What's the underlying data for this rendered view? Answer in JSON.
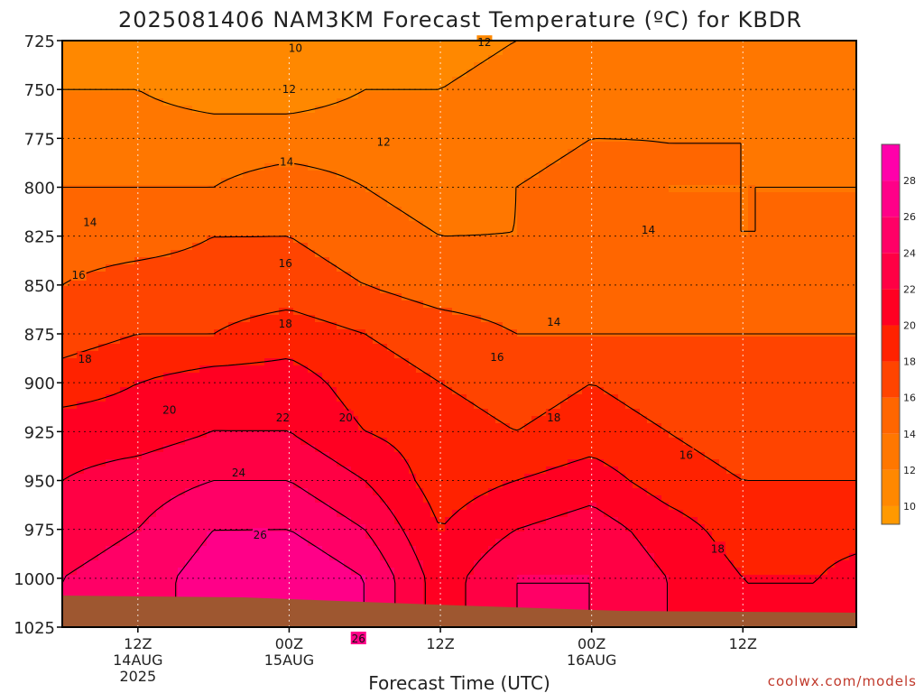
{
  "chart_data": {
    "type": "heatmap",
    "title": "2025081406 NAM3KM Forecast Temperature (ºC) for KBDR",
    "xlabel": "Forecast Time (UTC)",
    "ylabel": "",
    "credit": "coolwx.com/models",
    "y_ticks": [
      "725",
      "750",
      "775",
      "800",
      "825",
      "850",
      "875",
      "900",
      "925",
      "950",
      "975",
      "1000",
      "1025"
    ],
    "ylim": [
      725,
      1025
    ],
    "x_ticks": [
      {
        "label": "12Z",
        "day": "14AUG",
        "year": "2025",
        "hour": 12
      },
      {
        "label": "00Z",
        "day": "15AUG",
        "year": "",
        "hour": 24
      },
      {
        "label": "12Z",
        "day": "",
        "year": "",
        "hour": 36
      },
      {
        "label": "00Z",
        "day": "16AUG",
        "year": "",
        "hour": 48
      },
      {
        "label": "12Z",
        "day": "",
        "year": "",
        "hour": 60
      }
    ],
    "xlim_hours": [
      6,
      69
    ],
    "colorbar": {
      "ticks": [
        "10",
        "12",
        "14",
        "16",
        "18",
        "20",
        "22",
        "24",
        "26",
        "28"
      ],
      "range": [
        9,
        30
      ],
      "colors": [
        "#ff9900",
        "#ff8800",
        "#ff7700",
        "#ff6600",
        "#ff4400",
        "#ff2200",
        "#ff0022",
        "#ff0044",
        "#ff0066",
        "#ff0088",
        "#ff00aa"
      ]
    },
    "temperature_field": {
      "pressure_levels": [
        725,
        750,
        775,
        800,
        825,
        850,
        875,
        900,
        925,
        950,
        975,
        1000
      ],
      "hours": [
        6,
        12,
        18,
        24,
        30,
        36,
        42,
        48,
        54,
        60,
        66,
        69
      ],
      "values": [
        [
          11,
          11,
          10,
          10,
          11,
          11,
          12,
          12,
          12,
          12,
          12,
          12
        ],
        [
          12,
          12,
          11,
          11,
          12,
          12,
          13,
          13,
          13,
          13,
          13,
          12
        ],
        [
          13,
          13,
          13,
          13,
          13,
          13,
          13,
          14,
          14,
          14,
          13,
          13
        ],
        [
          14,
          14,
          14,
          15,
          14,
          13,
          14,
          15,
          14,
          14,
          14,
          14
        ],
        [
          15,
          15,
          16,
          16,
          15,
          14,
          14,
          15,
          14,
          14,
          14,
          14
        ],
        [
          16,
          17,
          17,
          17,
          16,
          15,
          15,
          15,
          15,
          15,
          15,
          15
        ],
        [
          17,
          18,
          18,
          19,
          18,
          17,
          16,
          16,
          16,
          16,
          16,
          16
        ],
        [
          19,
          20,
          21,
          21,
          19,
          18,
          17,
          18,
          17,
          16,
          16,
          16
        ],
        [
          21,
          21,
          22,
          22,
          20,
          19,
          18,
          19,
          18,
          17,
          17,
          17
        ],
        [
          22,
          23,
          24,
          24,
          22,
          19,
          20,
          21,
          19,
          18,
          18,
          18
        ],
        [
          23,
          24,
          26,
          26,
          24,
          20,
          22,
          23,
          21,
          19,
          19,
          19
        ],
        [
          24,
          25,
          27,
          28,
          26,
          21,
          24,
          24,
          22,
          20,
          20,
          21
        ]
      ]
    },
    "contour_labels": [
      {
        "text": "10",
        "hour": 24.5,
        "p": 729
      },
      {
        "text": "12",
        "hour": 39.5,
        "p": 726
      },
      {
        "text": "12",
        "hour": 24.0,
        "p": 750
      },
      {
        "text": "12",
        "hour": 31.5,
        "p": 777
      },
      {
        "text": "14",
        "hour": 23.8,
        "p": 787
      },
      {
        "text": "14",
        "hour": 8.2,
        "p": 818
      },
      {
        "text": "14",
        "hour": 52.5,
        "p": 822
      },
      {
        "text": "14",
        "hour": 45.0,
        "p": 869
      },
      {
        "text": "16",
        "hour": 7.3,
        "p": 845
      },
      {
        "text": "16",
        "hour": 23.7,
        "p": 839
      },
      {
        "text": "16",
        "hour": 40.5,
        "p": 887
      },
      {
        "text": "16",
        "hour": 55.5,
        "p": 937
      },
      {
        "text": "18",
        "hour": 7.8,
        "p": 888
      },
      {
        "text": "18",
        "hour": 23.7,
        "p": 870
      },
      {
        "text": "18",
        "hour": 45.0,
        "p": 918
      },
      {
        "text": "18",
        "hour": 58.0,
        "p": 985
      },
      {
        "text": "20",
        "hour": 14.5,
        "p": 914
      },
      {
        "text": "20",
        "hour": 28.5,
        "p": 918
      },
      {
        "text": "22",
        "hour": 23.5,
        "p": 918
      },
      {
        "text": "24",
        "hour": 20.0,
        "p": 946
      },
      {
        "text": "26",
        "hour": 21.7,
        "p": 978
      },
      {
        "text": "26",
        "hour": 29.5,
        "p": 1031
      }
    ]
  }
}
